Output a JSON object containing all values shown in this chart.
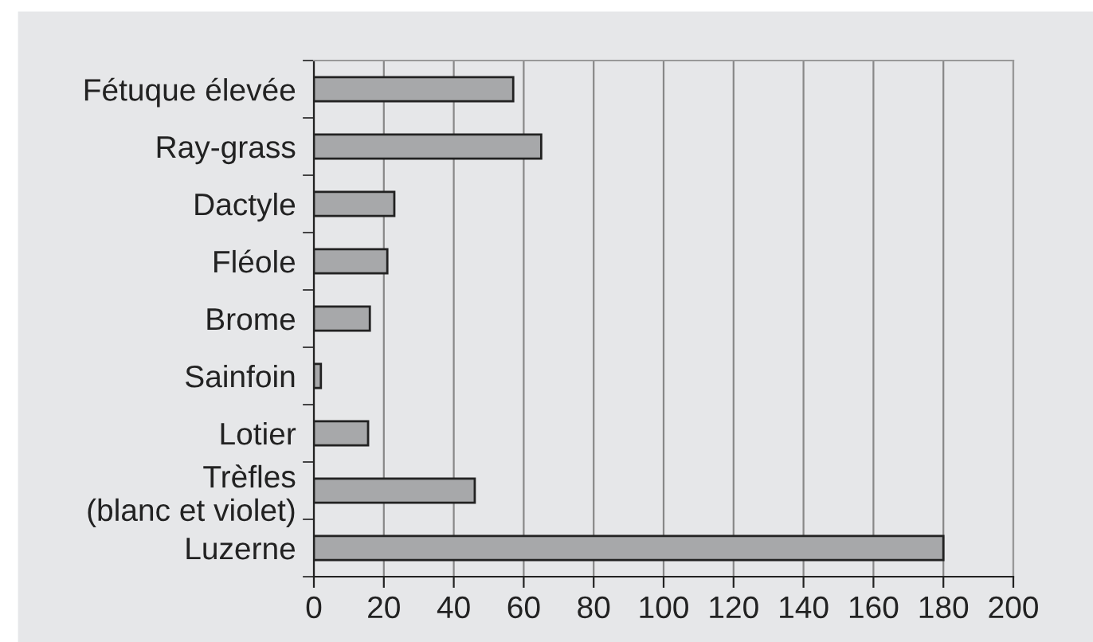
{
  "chart_data": {
    "type": "bar",
    "orientation": "horizontal",
    "categories": [
      "Fétuque élevée",
      "Ray-grass",
      "Dactyle",
      "Fléole",
      "Brome",
      "Sainfoin",
      "Lotier",
      "Trèfles\n(blanc et violet)",
      "Luzerne"
    ],
    "values": [
      57,
      65,
      23,
      21,
      16,
      2,
      15.5,
      46,
      180
    ],
    "color": "#a7a8aa",
    "xlim": [
      0,
      200
    ],
    "xticks": [
      0,
      20,
      40,
      60,
      80,
      100,
      120,
      140,
      160,
      180,
      200
    ],
    "grid": "x",
    "legend": false
  }
}
